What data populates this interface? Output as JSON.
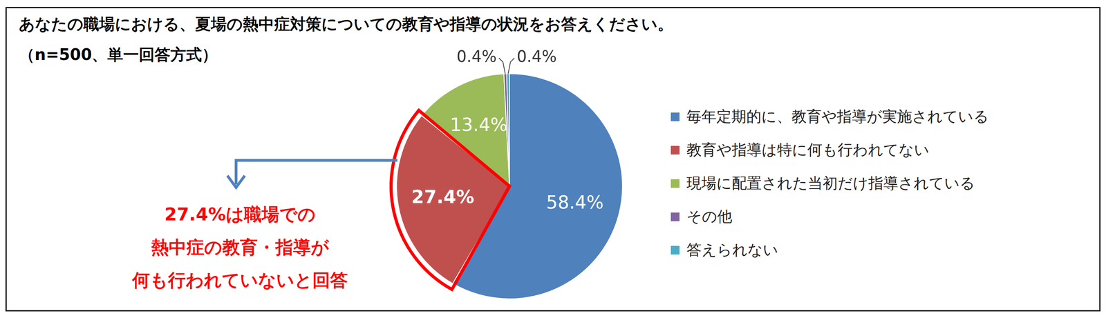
{
  "chart_data": {
    "type": "pie",
    "title": "あなたの職場における、夏場の熱中症対策についての教育や指導の状況をお答えください。",
    "subtitle": "（n=500、単一回答方式）",
    "categories": [
      "毎年定期的に、教育や指導が実施されている",
      "教育や指導は特に何も行われてない",
      "現場に配置された当初だけ指導されている",
      "その他",
      "答えられない"
    ],
    "values": [
      58.4,
      27.4,
      13.4,
      0.4,
      0.4
    ],
    "value_labels": [
      "58.4%",
      "27.4%",
      "13.4%",
      "0.4%",
      "0.4%"
    ],
    "colors": [
      "#4f81bd",
      "#c0504d",
      "#9bbb59",
      "#8064a2",
      "#4bacc6"
    ],
    "data_labels": true,
    "legend": "right",
    "annotation": "27.4%は職場での\n熱中症の教育・指導が\n何も行われていないと回答"
  }
}
